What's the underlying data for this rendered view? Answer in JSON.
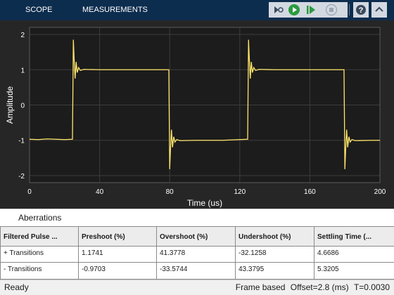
{
  "toolbar": {
    "tabs": [
      {
        "label": "SCOPE"
      },
      {
        "label": "MEASUREMENTS"
      }
    ],
    "buttons": [
      "settings-step-icon",
      "run-icon",
      "step-forward-icon",
      "stop-icon",
      "help-icon",
      "expand-icon"
    ]
  },
  "plot": {
    "ylabel": "Amplitude",
    "xlabel": "Time (us)",
    "background": "#1c1c1c",
    "line_color": "#ffe66b"
  },
  "chart_data": {
    "type": "line",
    "xlabel": "Time (us)",
    "ylabel": "Amplitude",
    "xlim": [
      0,
      200
    ],
    "ylim": [
      -2.2,
      2.2
    ],
    "xticks": [
      0,
      40,
      80,
      120,
      160,
      200
    ],
    "yticks": [
      2,
      1,
      0,
      -1,
      -2
    ],
    "grid": true,
    "series": [
      {
        "x": [
          0,
          5,
          10,
          15,
          20,
          24.5,
          25.0,
          25.4,
          26.0,
          26.6,
          27.2,
          28,
          29,
          31,
          40,
          60,
          79.5,
          80.0,
          80.4,
          81.0,
          81.6,
          82.3,
          83,
          84,
          86,
          95,
          110,
          124.5,
          125.0,
          125.4,
          126.0,
          126.6,
          127.2,
          128,
          129,
          131,
          140,
          160,
          179.5,
          180.0,
          180.4,
          181.0,
          181.6,
          182.3,
          183,
          184,
          186,
          195,
          200
        ],
        "y": [
          -0.97,
          -0.98,
          -0.96,
          -0.97,
          -0.98,
          -0.97,
          1.85,
          1.35,
          0.75,
          1.22,
          0.92,
          1.06,
          0.98,
          1.01,
          1.0,
          1.0,
          1.0,
          -1.82,
          -1.3,
          -0.7,
          -1.2,
          -0.9,
          -1.05,
          -0.98,
          -1.01,
          -1.0,
          -1.0,
          -0.97,
          1.85,
          1.35,
          0.75,
          1.22,
          0.92,
          1.06,
          0.98,
          1.01,
          1.0,
          1.0,
          1.0,
          -1.82,
          -1.3,
          -0.7,
          -1.2,
          -0.9,
          -1.05,
          -0.98,
          -1.01,
          -1.0,
          -1.0
        ]
      }
    ]
  },
  "aberrations": {
    "title": "Aberrations",
    "columns": [
      "Filtered Pulse ...",
      "Preshoot (%)",
      "Overshoot (%)",
      "Undershoot (%)",
      "Settling Time (..."
    ],
    "rows": [
      [
        "+ Transitions",
        "1.1741",
        "41.3778",
        "-32.1258",
        "4.6686"
      ],
      [
        "- Transitions",
        "-0.9703",
        "-33.5744",
        "43.3795",
        "5.3205"
      ]
    ]
  },
  "status": {
    "left": "Ready",
    "frame": "Frame based",
    "offset": "Offset=2.8 (ms)",
    "time": "T=0.0030"
  }
}
